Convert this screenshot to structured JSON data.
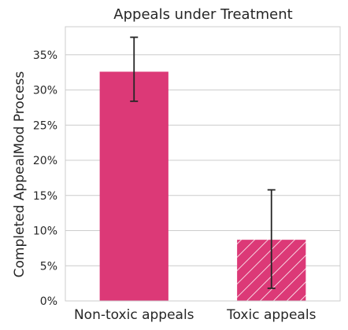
{
  "colors": {
    "bar": "#dc3977",
    "errorbar": "#262626",
    "grid": "#cccccc",
    "axes_edge": "#cccccc",
    "hatch": "#ffffff"
  },
  "chart_data": {
    "type": "bar",
    "title": "Appeals under Treatment",
    "xlabel": "",
    "ylabel": "Completed AppealMod Process",
    "categories": [
      "Non-toxic appeals",
      "Toxic appeals"
    ],
    "values": [
      32.6,
      8.7
    ],
    "error_low": [
      28.4,
      1.8
    ],
    "error_high": [
      37.5,
      15.8
    ],
    "hatched": [
      false,
      true
    ],
    "ylim": [
      0,
      39
    ],
    "yticks": [
      0,
      5,
      10,
      15,
      20,
      25,
      30,
      35
    ],
    "ytick_labels": [
      "0%",
      "5%",
      "10%",
      "15%",
      "20%",
      "25%",
      "30%",
      "35%"
    ],
    "grid": "horizontal",
    "legend": "none"
  }
}
